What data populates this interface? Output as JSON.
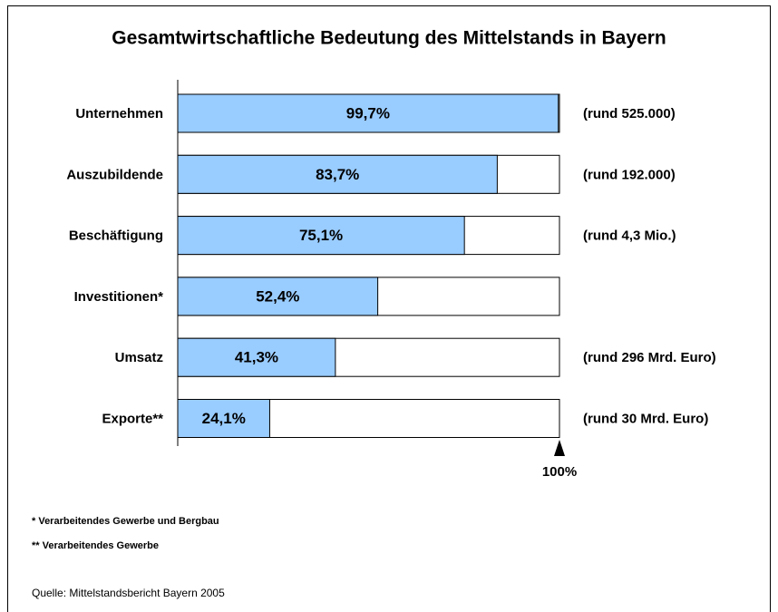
{
  "chart_data": {
    "type": "bar",
    "orientation": "horizontal",
    "title": "Gesamtwirtschaftliche Bedeutung des Mittelstands in Bayern",
    "categories": [
      "Unternehmen",
      "Auszubildende",
      "Beschäftigung",
      "Investitionen*",
      "Umsatz",
      "Exporte**"
    ],
    "values": [
      99.7,
      83.7,
      75.1,
      52.4,
      41.3,
      24.1
    ],
    "value_labels": [
      "99,7%",
      "83,7%",
      "75,1%",
      "52,4%",
      "41,3%",
      "24,1%"
    ],
    "annotations": [
      "(rund 525.000)",
      "(rund 192.000)",
      "(rund 4,3 Mio.)",
      null,
      "(rund 296 Mrd. Euro)",
      "(rund 30 Mrd. Euro)"
    ],
    "color": "#99ccff",
    "xlim": [
      0,
      100
    ],
    "xticks": [
      {
        "value": 100,
        "label": "100%"
      }
    ],
    "footnotes": [
      "*  Verarbeitendes Gewerbe und Bergbau",
      "** Verarbeitendes Gewerbe"
    ],
    "source": "Quelle: Mittelstandsbericht Bayern 2005"
  }
}
